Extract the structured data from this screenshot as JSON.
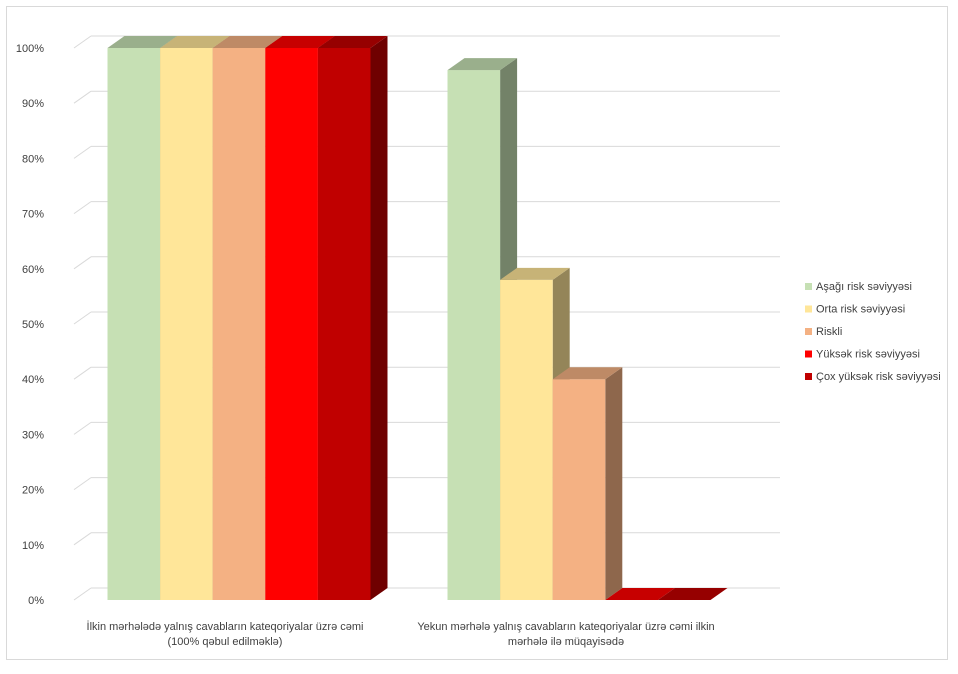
{
  "chart_data": {
    "type": "bar",
    "subtype": "3d-clustered-column",
    "title": "",
    "xlabel": "",
    "ylabel": "",
    "ylim": [
      0,
      100
    ],
    "y_tick_labels": [
      "0%",
      "10%",
      "20%",
      "30%",
      "40%",
      "50%",
      "60%",
      "70%",
      "80%",
      "90%",
      "100%"
    ],
    "grid": true,
    "legend_position": "right",
    "categories": [
      [
        "İlkin mərhələdə yalnış cavabların kateqoriyalar üzrə cəmi",
        "(100% qəbul edilməklə)"
      ],
      [
        "Yekun mərhələ yalnış cavabların kateqoriyalar üzrə cəmi ilkin",
        "mərhələ ilə müqayisədə"
      ]
    ],
    "series": [
      {
        "name": "Aşağı risk səviyyəsi",
        "color": "#c6e0b4",
        "values": [
          100,
          96
        ]
      },
      {
        "name": "Orta risk səviyyəsi",
        "color": "#ffe699",
        "values": [
          100,
          58
        ]
      },
      {
        "name": "Riskli",
        "color": "#f4b183",
        "values": [
          100,
          40
        ]
      },
      {
        "name": "Yüksək risk səviyyəsi",
        "color": "#ff0000",
        "values": [
          100,
          0
        ]
      },
      {
        "name": "Çox yüksək risk səviyyəsi",
        "color": "#c00000",
        "values": [
          100,
          0
        ]
      }
    ]
  }
}
